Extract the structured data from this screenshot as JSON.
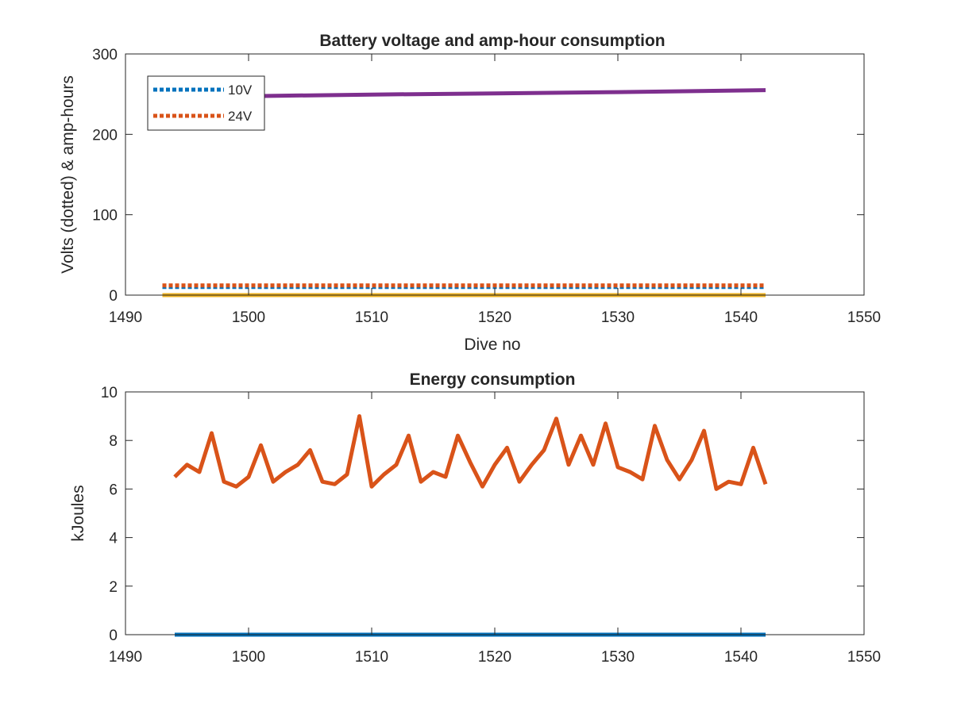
{
  "chart_data": [
    {
      "type": "line",
      "title": "Battery voltage and amp-hour consumption",
      "xlabel": "Dive no",
      "ylabel": "Volts (dotted) & amp-hours",
      "xlim": [
        1490,
        1550
      ],
      "ylim": [
        0,
        300
      ],
      "xticks": [
        "1490",
        "1500",
        "1510",
        "1520",
        "1530",
        "1540",
        "1550"
      ],
      "yticks": [
        "0",
        "100",
        "200",
        "300"
      ],
      "legend_position": "top-left",
      "grid": false,
      "series": [
        {
          "name": "10V",
          "color": "#0072BD",
          "style": "dotted",
          "x": [
            1493,
            1542
          ],
          "y": [
            10.2,
            10.2
          ]
        },
        {
          "name": "24V",
          "color": "#D95319",
          "style": "dotted",
          "x": [
            1493,
            1542
          ],
          "y": [
            12,
            12
          ]
        },
        {
          "color": "#EDB120",
          "style": "solid",
          "x": [
            1493,
            1542
          ],
          "y": [
            0,
            0
          ]
        },
        {
          "color": "#7E2F8E",
          "style": "solid",
          "x": [
            1493,
            1500,
            1510,
            1520,
            1530,
            1542
          ],
          "y": [
            246,
            247.5,
            249.5,
            251,
            252.5,
            255
          ]
        }
      ]
    },
    {
      "type": "line",
      "title": "Energy consumption",
      "xlabel": "",
      "ylabel": "kJoules",
      "xlim": [
        1490,
        1550
      ],
      "ylim": [
        0,
        10
      ],
      "xticks": [
        "1490",
        "1500",
        "1510",
        "1520",
        "1530",
        "1540",
        "1550"
      ],
      "yticks": [
        "0",
        "2",
        "4",
        "6",
        "8",
        "10"
      ],
      "grid": false,
      "series": [
        {
          "color": "#0072BD",
          "style": "solid",
          "x": [
            1494,
            1542
          ],
          "y": [
            0,
            0
          ]
        },
        {
          "color": "#D95319",
          "style": "solid",
          "x": [
            1494,
            1495,
            1496,
            1497,
            1498,
            1499,
            1500,
            1501,
            1502,
            1503,
            1504,
            1505,
            1506,
            1507,
            1508,
            1509,
            1510,
            1511,
            1512,
            1513,
            1514,
            1515,
            1516,
            1517,
            1518,
            1519,
            1520,
            1521,
            1522,
            1523,
            1524,
            1525,
            1526,
            1527,
            1528,
            1529,
            1530,
            1531,
            1532,
            1533,
            1534,
            1535,
            1536,
            1537,
            1538,
            1539,
            1540,
            1541,
            1542
          ],
          "y": [
            6.5,
            7.0,
            6.7,
            8.3,
            6.3,
            6.1,
            6.5,
            7.8,
            6.3,
            6.7,
            7.0,
            7.6,
            6.3,
            6.2,
            6.6,
            9.0,
            6.1,
            6.6,
            7.0,
            8.2,
            6.3,
            6.7,
            6.5,
            8.2,
            7.1,
            6.1,
            7.0,
            7.7,
            6.3,
            7.0,
            7.6,
            8.9,
            7.0,
            8.2,
            7.0,
            8.7,
            6.9,
            6.7,
            6.4,
            8.6,
            7.2,
            6.4,
            7.2,
            8.4,
            6.0,
            6.3,
            6.2,
            7.7,
            6.2
          ]
        }
      ]
    }
  ]
}
